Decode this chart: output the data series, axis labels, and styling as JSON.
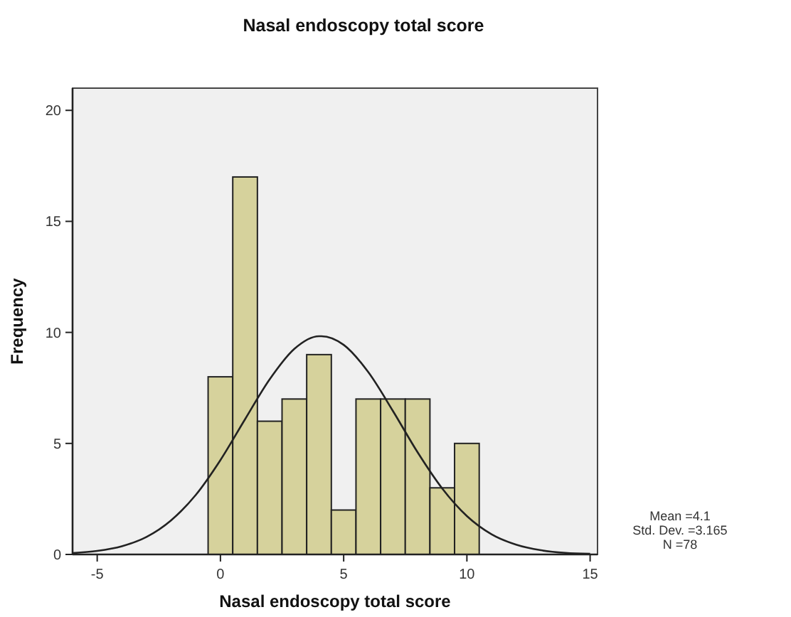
{
  "chart_data": {
    "type": "histogram",
    "title": "Nasal endoscopy total score",
    "xlabel": "Nasal endoscopy total score",
    "ylabel": "Frequency",
    "xlim": [
      -6,
      15.3
    ],
    "xticks": [
      -5,
      0,
      5,
      10,
      15
    ],
    "ylim": [
      0,
      21
    ],
    "yticks": [
      0,
      5,
      10,
      15,
      20
    ],
    "grid": false,
    "annotations": [
      "Mean =4.1",
      "Std. Dev. =3.165",
      "N =78"
    ],
    "series": [
      {
        "color": "#d6d29c",
        "bins": [
          -0.5,
          0.5,
          1.5,
          2.5,
          3.5,
          4.5,
          5.5,
          6.5,
          7.5,
          8.5,
          9.5,
          10.5
        ],
        "values": [
          8,
          17,
          6,
          7,
          9,
          2,
          7,
          7,
          7,
          3,
          5
        ]
      },
      {
        "type": "line",
        "color": "#222222",
        "x": [
          -6,
          -5,
          -4,
          -3,
          -2,
          -1,
          0,
          1,
          2,
          3,
          4,
          4.1,
          5,
          6,
          7,
          8,
          9,
          10,
          11,
          12,
          13,
          14,
          15
        ],
        "values": [
          0.06,
          0.16,
          0.37,
          0.79,
          1.54,
          2.68,
          4.25,
          6.09,
          7.89,
          9.26,
          9.83,
          9.83,
          9.44,
          8.21,
          6.46,
          4.6,
          2.97,
          1.73,
          0.91,
          0.44,
          0.19,
          0.07,
          0.03
        ]
      }
    ]
  }
}
